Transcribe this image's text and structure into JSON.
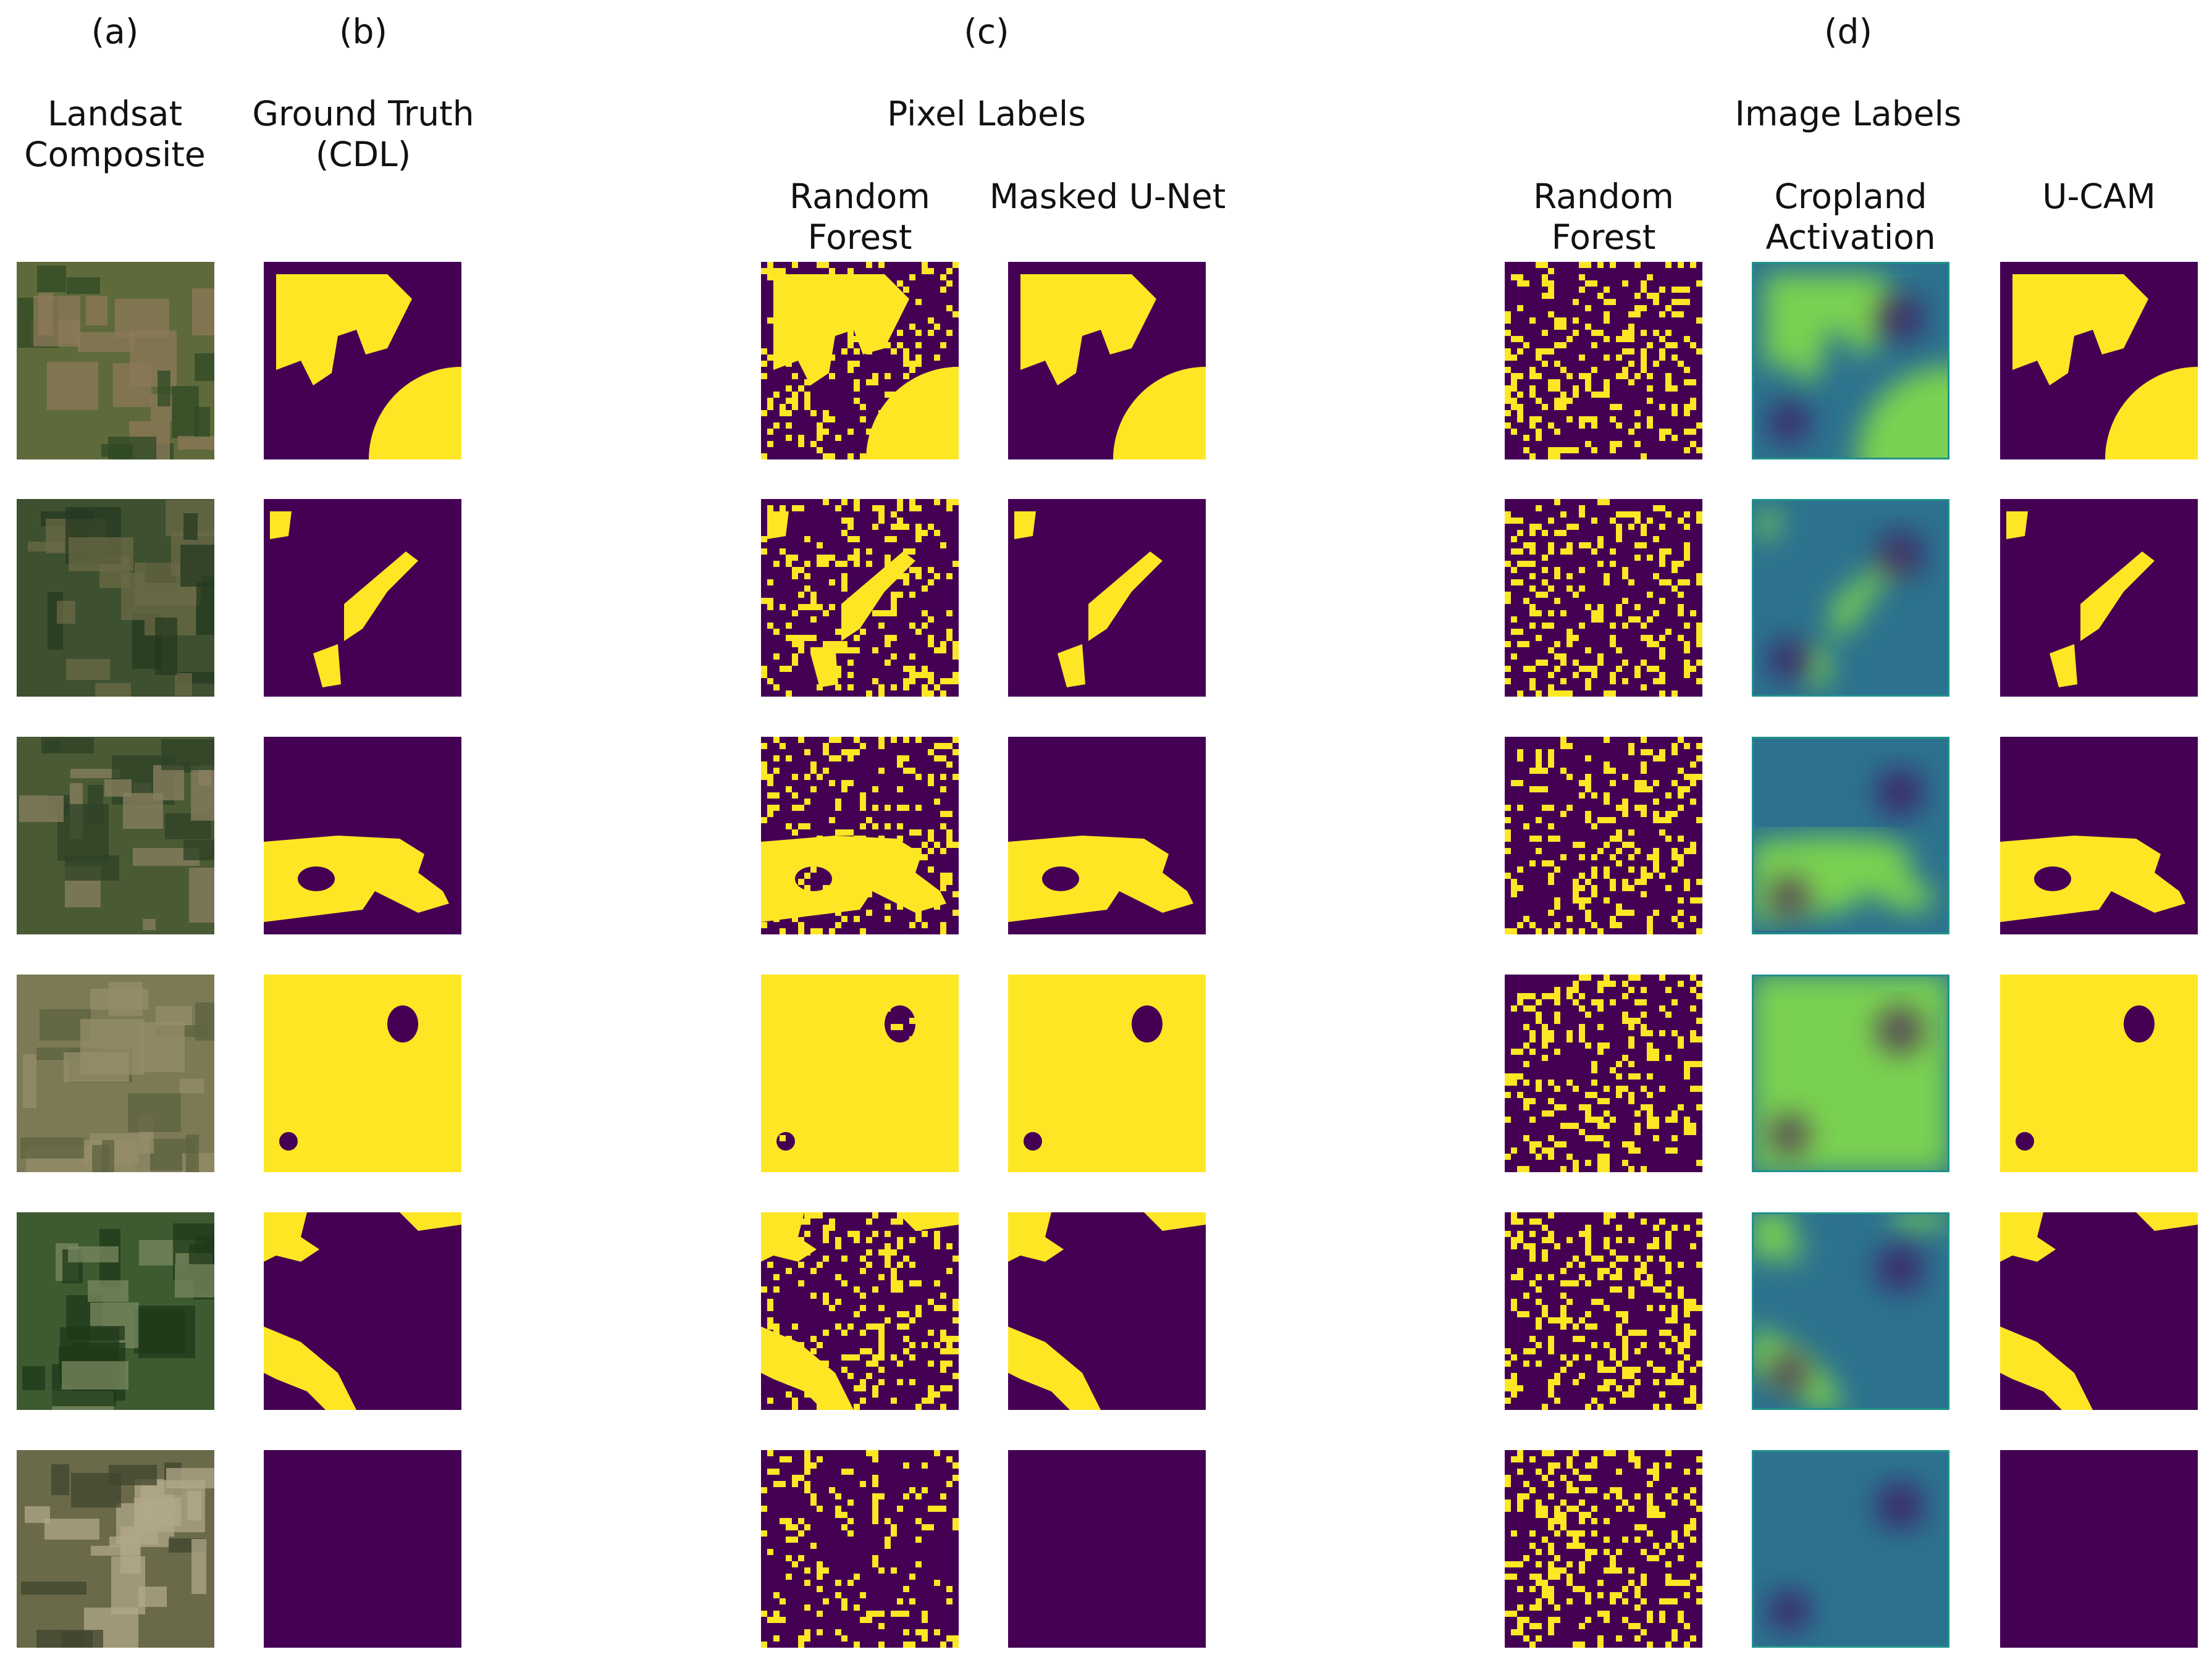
{
  "panels": {
    "a": {
      "letter": "(a)",
      "title_l1": "Landsat",
      "title_l2": "Composite"
    },
    "b": {
      "letter": "(b)",
      "title_l1": "Ground Truth",
      "title_l2": "(CDL)"
    },
    "c": {
      "letter": "(c)",
      "title": "Pixel Labels",
      "col1_l1": "Random",
      "col1_l2": "Forest",
      "col2": "Masked U-Net"
    },
    "d": {
      "letter": "(d)",
      "title": "Image Labels",
      "col1_l1": "Random",
      "col1_l2": "Forest",
      "col2_l1": "Cropland",
      "col2_l2": "Activation",
      "col3": "U-CAM"
    }
  },
  "row_count": 6,
  "colors": {
    "crop": "#fde725",
    "non_crop": "#440154",
    "activation_low": "#440154",
    "activation_mid": "#2c728e",
    "activation_high": "#fde725"
  }
}
